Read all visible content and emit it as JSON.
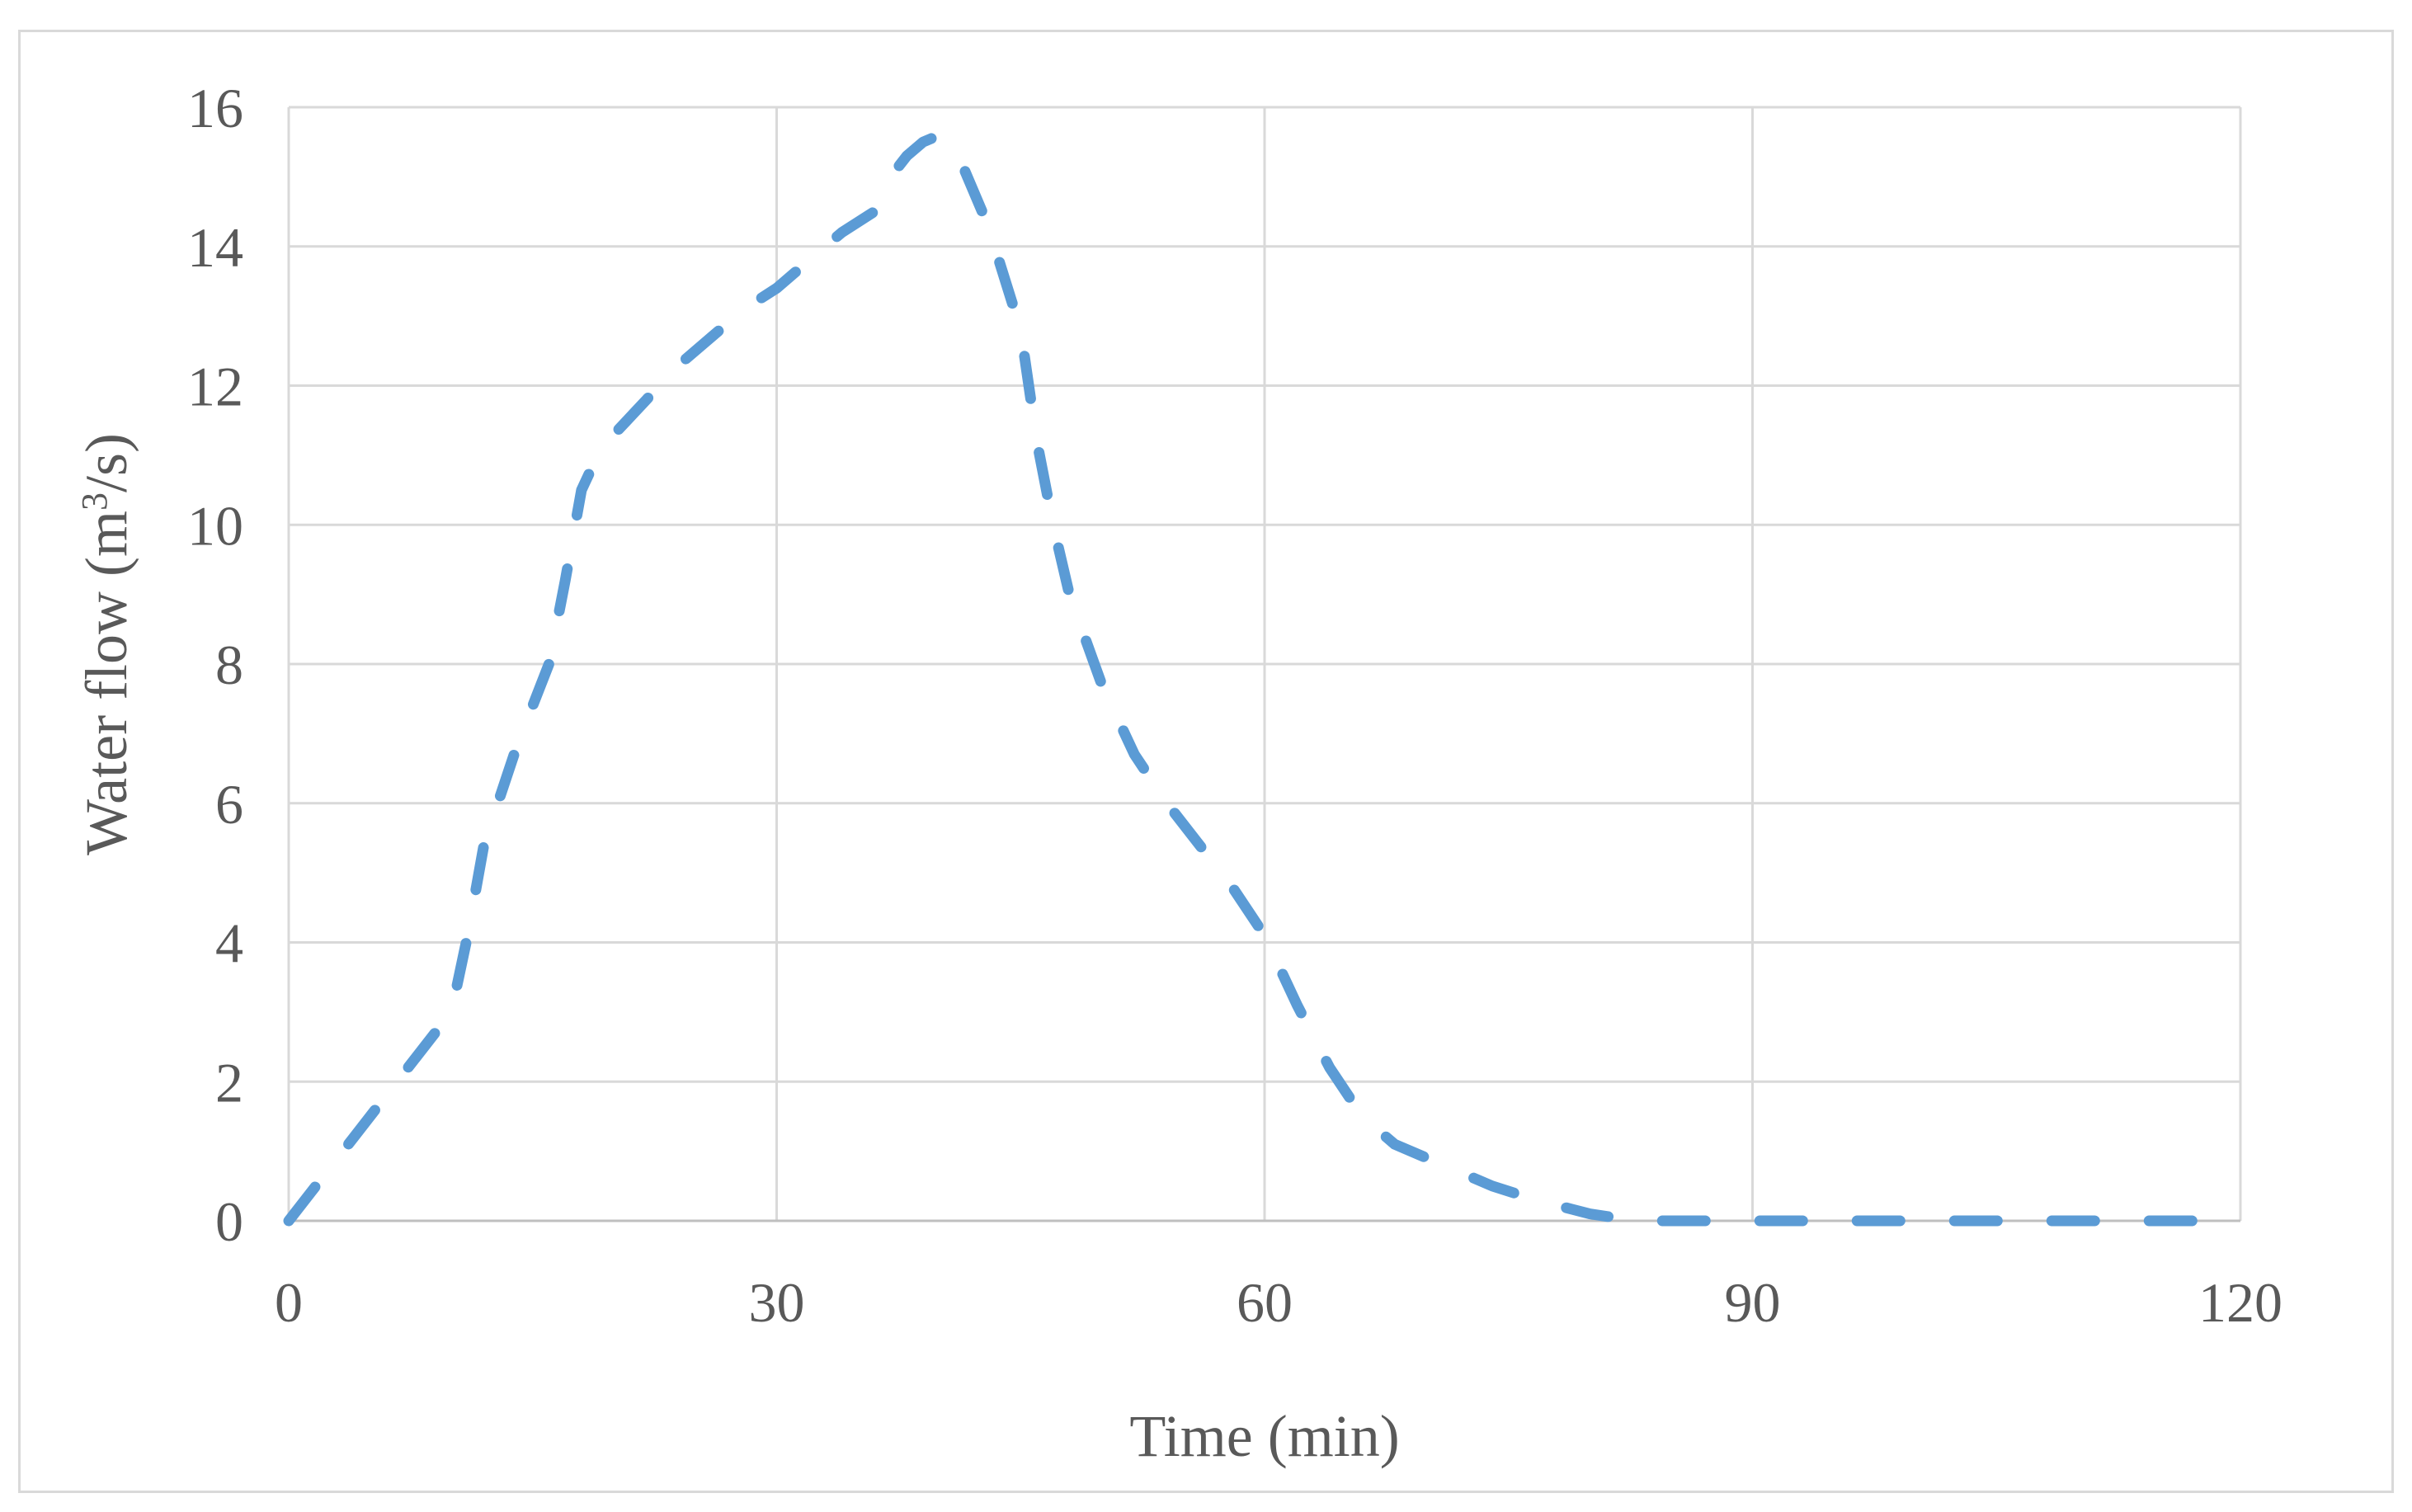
{
  "chart_data": {
    "type": "line",
    "title": "",
    "xlabel": "Time (min)",
    "ylabel_main": "Water flow (m",
    "ylabel_sup": "3",
    "ylabel_tail": "/s)",
    "xlim": [
      0,
      120
    ],
    "ylim": [
      0,
      16
    ],
    "xticks": [
      0,
      30,
      60,
      90,
      120
    ],
    "yticks": [
      0,
      2,
      4,
      6,
      8,
      10,
      12,
      14,
      16
    ],
    "grid": true,
    "legend": "none",
    "series": [
      {
        "color": "#5b9bd5",
        "line_style": "dashed",
        "x": [
          0,
          2,
          4,
          6,
          8,
          10,
          11,
          12,
          14,
          16,
          17,
          18,
          19,
          20,
          22,
          24,
          26,
          28,
          30,
          32,
          34,
          36,
          37,
          38,
          39,
          40,
          41,
          43,
          45,
          46,
          47,
          48,
          50,
          52,
          54,
          56,
          58,
          60,
          62,
          64,
          66,
          68,
          70,
          72,
          74,
          76,
          78,
          80,
          82,
          84,
          86,
          90,
          100,
          110,
          118
        ],
        "y": [
          0,
          0.6,
          1.2,
          1.8,
          2.4,
          3.0,
          4.1,
          5.4,
          6.8,
          8.0,
          9.2,
          10.5,
          11.0,
          11.3,
          11.8,
          12.3,
          12.7,
          13.1,
          13.4,
          13.8,
          14.2,
          14.5,
          15.0,
          15.3,
          15.5,
          15.6,
          15.4,
          14.3,
          12.8,
          11.2,
          10.0,
          9.0,
          7.7,
          6.7,
          6.0,
          5.4,
          4.8,
          4.1,
          3.1,
          2.2,
          1.5,
          1.1,
          0.9,
          0.7,
          0.5,
          0.35,
          0.22,
          0.1,
          0.03,
          0,
          0,
          0,
          0,
          0,
          0
        ]
      }
    ]
  }
}
